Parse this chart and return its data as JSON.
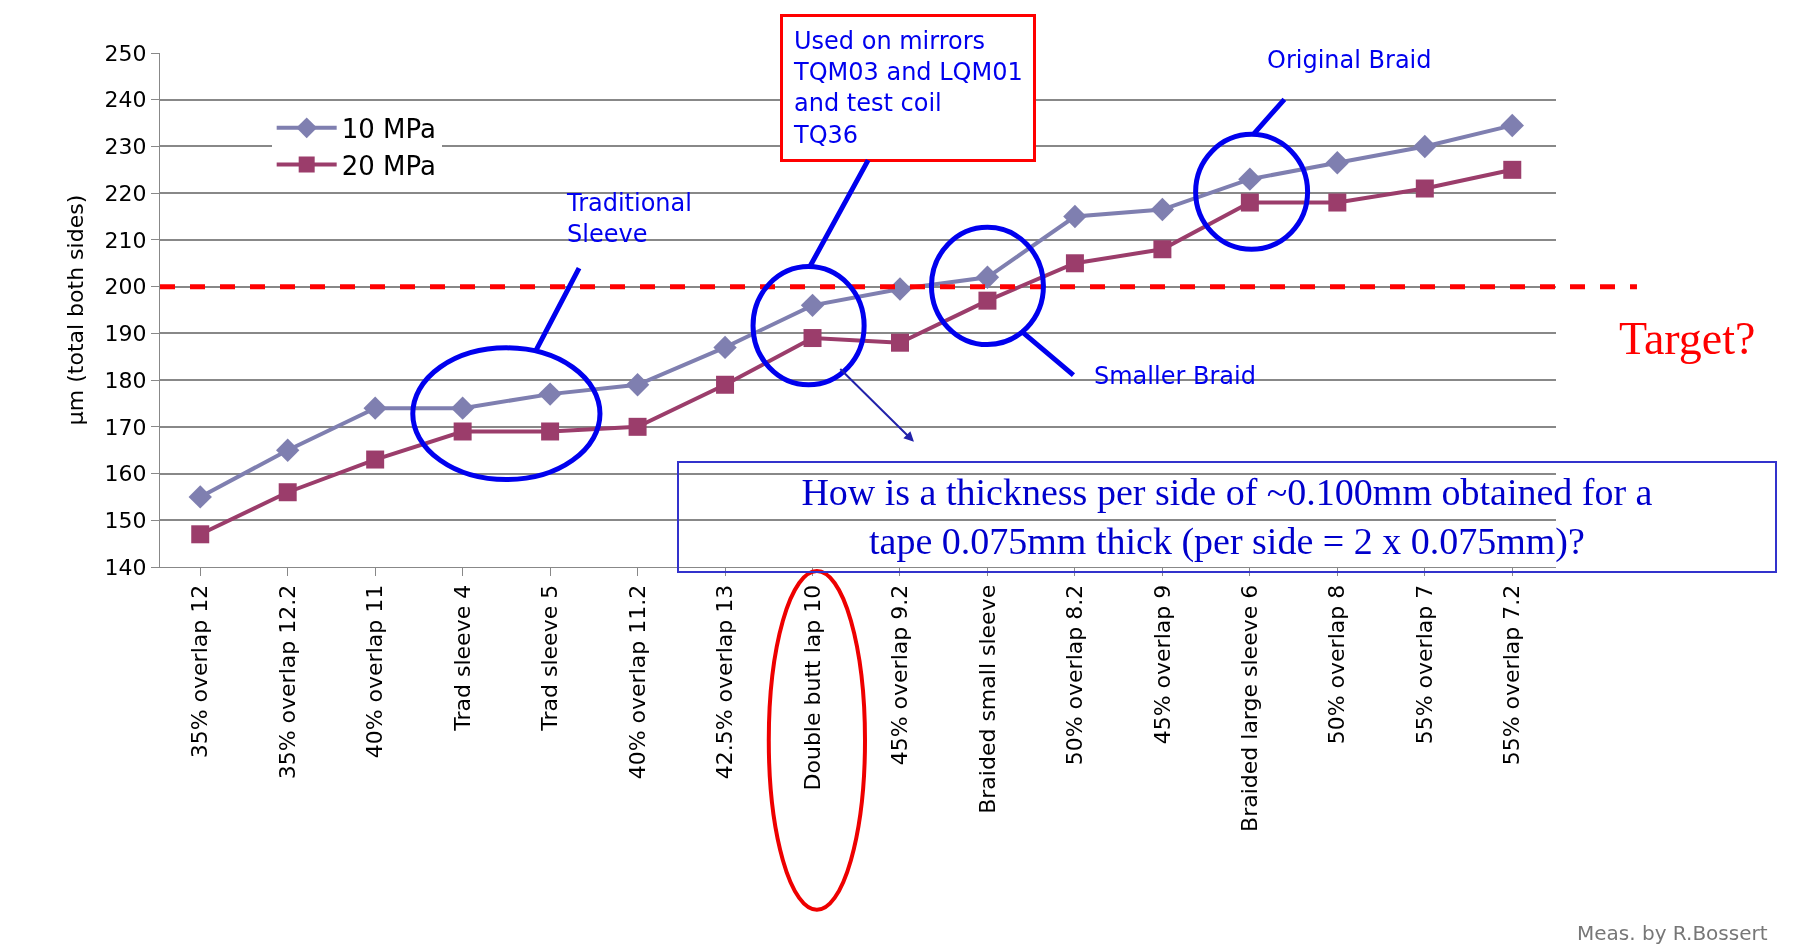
{
  "chart_data": {
    "type": "line",
    "categories": [
      "35% overlap 12",
      "35% overlap 12.2",
      "40% overlap 11",
      "Trad sleeve 4",
      "Trad sleeve 5",
      "40% overlap 11.2",
      "42.5% overlap 13",
      "Double butt lap 10",
      "45% overlap 9.2",
      "Braided small sleeve",
      "50% overlap 8.2",
      "45% overlap 9",
      "Braided large sleeve 6",
      "50% overlap 8",
      "55% overlap 7",
      "55% overlap 7.2"
    ],
    "series": [
      {
        "name": "10 MPa",
        "color": "#7f7fb0",
        "marker": "diamond",
        "values": [
          155,
          165,
          174,
          174,
          177,
          179,
          187,
          196,
          199.5,
          202,
          215,
          216.5,
          223,
          226.5,
          230,
          234.5
        ]
      },
      {
        "name": "20 MPa",
        "color": "#9b3d6b",
        "marker": "square",
        "values": [
          147,
          156,
          163,
          169,
          169,
          170,
          179,
          189,
          188,
          197,
          205,
          208,
          218,
          218,
          221,
          225
        ]
      }
    ],
    "ylabel": "µm (total both sides)",
    "ylim": [
      140,
      250
    ],
    "yticks": [
      140,
      150,
      160,
      170,
      180,
      190,
      200,
      210,
      220,
      230,
      240,
      250
    ],
    "grid": "y",
    "legend": "top left",
    "line_style": "solid",
    "ref_lines": [
      {
        "axis": "y",
        "value": 200,
        "label": "Target?",
        "color": "#ff0000",
        "line_style": "dashed"
      }
    ],
    "annotations": [
      "Traditional Sleeve",
      "Used on mirrors TQM03 and LQM01 and test coil TQ36",
      "Original Braid",
      "Smaller Braid",
      "How is a thickness per side of ~0.100mm obtained for a tape 0.075mm thick (per side = 2 x 0.075mm)?",
      "Meas. by R.Bossert"
    ]
  }
}
